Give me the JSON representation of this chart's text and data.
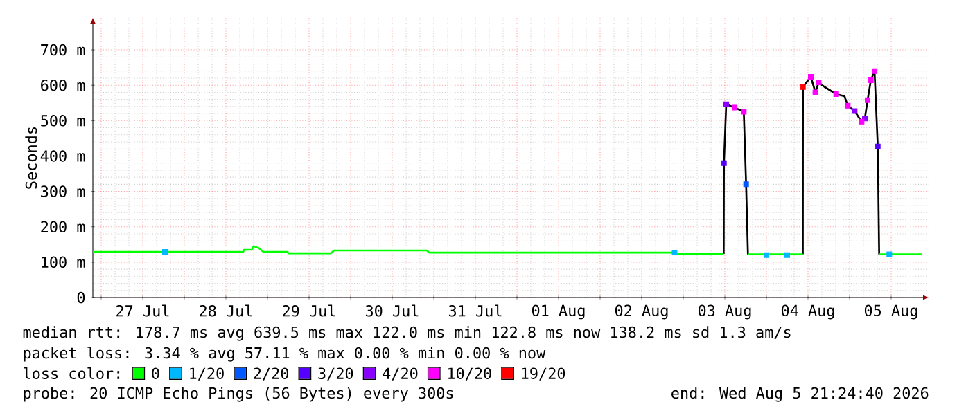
{
  "chart_data": {
    "type": "line",
    "ylabel": "Seconds",
    "xlim": [
      "2026-07-26T21:36",
      "2026-08-05T22:48"
    ],
    "ylim": [
      0,
      790
    ],
    "xticks": [
      {
        "value": "2026-07-27T00:00",
        "label": null
      },
      {
        "value": "2026-07-27T12:00",
        "label": "27 Jul"
      },
      {
        "value": "2026-07-28T00:00",
        "label": null
      },
      {
        "value": "2026-07-28T12:00",
        "label": "28 Jul"
      },
      {
        "value": "2026-07-29T00:00",
        "label": null
      },
      {
        "value": "2026-07-29T12:00",
        "label": "29 Jul"
      },
      {
        "value": "2026-07-30T00:00",
        "label": null
      },
      {
        "value": "2026-07-30T12:00",
        "label": "30 Jul"
      },
      {
        "value": "2026-07-31T00:00",
        "label": null
      },
      {
        "value": "2026-07-31T12:00",
        "label": "31 Jul"
      },
      {
        "value": "2026-08-01T00:00",
        "label": null
      },
      {
        "value": "2026-08-01T12:00",
        "label": "01 Aug"
      },
      {
        "value": "2026-08-02T00:00",
        "label": null
      },
      {
        "value": "2026-08-02T12:00",
        "label": "02 Aug"
      },
      {
        "value": "2026-08-03T00:00",
        "label": null
      },
      {
        "value": "2026-08-03T12:00",
        "label": "03 Aug"
      },
      {
        "value": "2026-08-04T00:00",
        "label": null
      },
      {
        "value": "2026-08-04T12:00",
        "label": "04 Aug"
      },
      {
        "value": "2026-08-05T00:00",
        "label": null
      },
      {
        "value": "2026-08-05T12:00",
        "label": "05 Aug"
      }
    ],
    "yticks": [
      0,
      {
        "value": 100,
        "label": "100 m"
      },
      {
        "value": 200,
        "label": "200 m"
      },
      {
        "value": 300,
        "label": "300 m"
      },
      {
        "value": 400,
        "label": "400 m"
      },
      {
        "value": 500,
        "label": "500 m"
      },
      {
        "value": 600,
        "label": "600 m"
      },
      {
        "value": 700,
        "label": "700 m"
      }
    ],
    "grid": true,
    "legend": "bottom",
    "legend_title": "loss color:",
    "series": [
      {
        "color": "#000000",
        "x": [
          "2026-08-03T11:40",
          "2026-08-03T11:44",
          "2026-08-03T12:24",
          "2026-08-03T14:48",
          "2026-08-03T17:28",
          "2026-08-03T18:08",
          "2026-08-03T18:40",
          "2026-08-04T00:00",
          "2026-08-04T10:30",
          "2026-08-04T10:32",
          "2026-08-04T12:48",
          "2026-08-04T14:08",
          "2026-08-04T15:04",
          "2026-08-04T16:48",
          "2026-08-04T20:08",
          "2026-08-04T22:32",
          "2026-08-04T23:28",
          "2026-08-05T01:28",
          "2026-08-05T03:28",
          "2026-08-05T04:24",
          "2026-08-05T05:12",
          "2026-08-05T06:08",
          "2026-08-05T07:12",
          "2026-08-05T08:08",
          "2026-08-05T08:32"
        ],
        "values": [
          123,
          380,
          546,
          537,
          525,
          320,
          122,
          null,
          122,
          595,
          624,
          580,
          608,
          595,
          575,
          569,
          542,
          527,
          497,
          506,
          558,
          614,
          640,
          427,
          122
        ]
      },
      {
        "name": "0",
        "color": "#00ff00",
        "x": [
          "2026-07-26T21:36",
          "2026-07-28T17:00",
          "2026-07-28T17:12",
          "2026-07-28T19:30",
          "2026-07-28T20:00",
          "2026-07-28T21:30",
          "2026-07-28T22:48",
          "2026-07-29T05:50",
          "2026-07-29T06:00",
          "2026-07-29T18:20",
          "2026-07-29T19:12",
          "2026-07-30T22:00",
          "2026-07-30T22:40",
          "2026-08-02T21:30",
          "2026-08-02T21:40",
          "2026-08-03T11:40",
          "2026-08-03T14:48",
          "2026-08-03T18:40",
          "2026-08-04T10:30",
          "2026-08-04T16:48",
          "2026-08-05T08:32",
          "2026-08-05T20:48"
        ],
        "values": [
          129,
          129,
          135,
          135,
          145,
          140,
          129,
          129,
          125,
          125,
          133,
          133,
          127,
          127,
          123,
          123,
          null,
          122,
          122,
          null,
          122,
          122
        ]
      },
      {
        "name": "1/20",
        "type": "scatter",
        "marker": "square",
        "color": "#00b8ff",
        "x": [
          "2026-07-27T18:24",
          "2026-08-02T21:30",
          "2026-08-04T00:00",
          "2026-08-04T06:00",
          "2026-08-05T11:28"
        ],
        "values": [
          129,
          127,
          120,
          120,
          122
        ]
      },
      {
        "name": "2/20",
        "type": "scatter",
        "marker": "square",
        "color": "#0059ff",
        "x": [
          "2026-08-03T18:08"
        ],
        "values": [
          320
        ]
      },
      {
        "name": "3/20",
        "type": "scatter",
        "marker": "square",
        "color": "#5500ff",
        "x": [
          "2026-08-03T11:44",
          "2026-08-05T08:08"
        ],
        "values": [
          380,
          427
        ]
      },
      {
        "name": "4/20",
        "type": "scatter",
        "marker": "square",
        "color": "#8a00ff",
        "x": [
          "2026-08-03T12:24",
          "2026-08-05T01:28",
          "2026-08-05T04:24"
        ],
        "values": [
          546,
          527,
          506
        ]
      },
      {
        "name": "10/20",
        "type": "scatter",
        "marker": "square",
        "color": "#ff00ff",
        "x": [
          "2026-08-03T14:48",
          "2026-08-03T17:28",
          "2026-08-04T12:48",
          "2026-08-04T14:08",
          "2026-08-04T15:04",
          "2026-08-04T20:08",
          "2026-08-04T23:28",
          "2026-08-05T03:28",
          "2026-08-05T05:12",
          "2026-08-05T06:08",
          "2026-08-05T07:12"
        ],
        "values": [
          537,
          525,
          624,
          580,
          608,
          575,
          542,
          497,
          558,
          614,
          640
        ]
      },
      {
        "name": "19/20",
        "type": "scatter",
        "marker": "square",
        "color": "#ff0000",
        "x": [
          "2026-08-04T10:32"
        ],
        "values": [
          595
        ]
      }
    ],
    "annotations": [
      "median rtt: 178.7 ms avg 639.5 ms max 122.0 ms min 122.8 ms now 138.2 ms sd 1.3 am/s",
      "packet loss: 3.34 % avg 57.11 % max 0.00 % min 0.00 % now",
      "probe: 20 ICMP Echo Pings (56 Bytes) every 300s",
      "end: Wed Aug 5 21:24:40 2026"
    ]
  }
}
